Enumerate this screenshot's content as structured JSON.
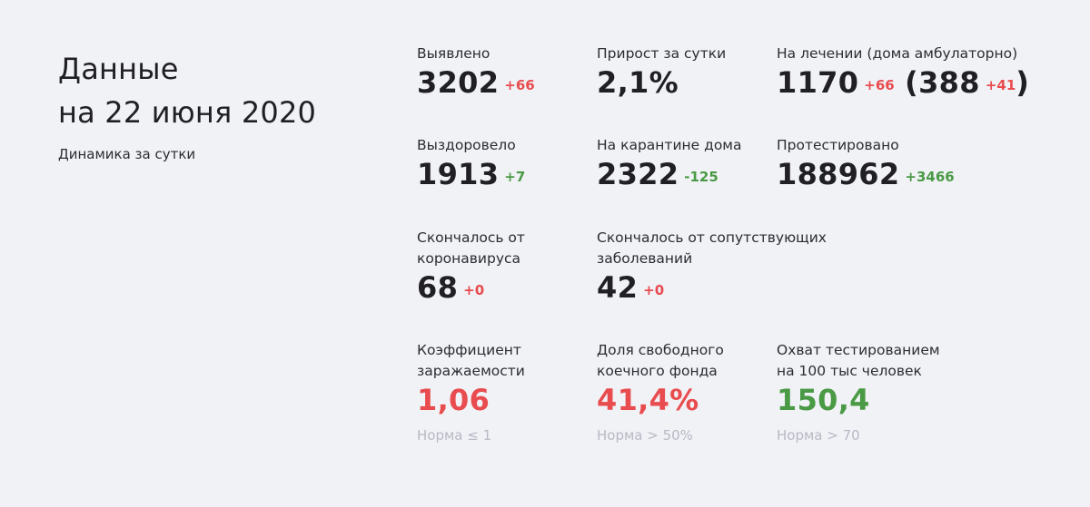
{
  "header": {
    "title_line1": "Данные",
    "title_line2": "на 22 июня 2020",
    "subtitle": "Динамика за сутки"
  },
  "stats": {
    "detected": {
      "label": "Выявлено",
      "value": "3202",
      "delta": "+66"
    },
    "growth": {
      "label": "Прирост за сутки",
      "value": "2,1%"
    },
    "treatment": {
      "label": "На лечении (дома амбулаторно)",
      "value": "1170",
      "delta": "+66",
      "open": "(",
      "home_value": "388",
      "home_delta": "+41",
      "close": ")"
    },
    "recovered": {
      "label": "Выздоровело",
      "value": "1913",
      "delta": "+7"
    },
    "quarantine": {
      "label": "На карантине дома",
      "value": "2322",
      "delta": "-125"
    },
    "tested": {
      "label": "Протестировано",
      "value": "188962",
      "delta": "+3466"
    },
    "died_covid": {
      "label_line1": "Скончалось от",
      "label_line2": "коронавируса",
      "value": "68",
      "delta": "+0"
    },
    "died_other": {
      "label_line1": "Скончалось от сопутствующих",
      "label_line2": "заболеваний",
      "value": "42",
      "delta": "+0"
    },
    "infection_rate": {
      "label_line1": "Коэффициент",
      "label_line2": "заражаемости",
      "value": "1,06",
      "norm": "Норма ≤ 1"
    },
    "free_beds": {
      "label_line1": "Доля свободного",
      "label_line2": "коечного фонда",
      "value": "41,4%",
      "norm": "Норма > 50%"
    },
    "testing_coverage": {
      "label_line1": "Охват тестированием",
      "label_line2": "на 100 тыс человек",
      "value": "150,4",
      "norm": "Норма > 70"
    }
  },
  "colors": {
    "background": "#f1f2f6",
    "negative": "#e84c4f",
    "positive": "#4a9a45",
    "muted": "#b7b9c4"
  }
}
